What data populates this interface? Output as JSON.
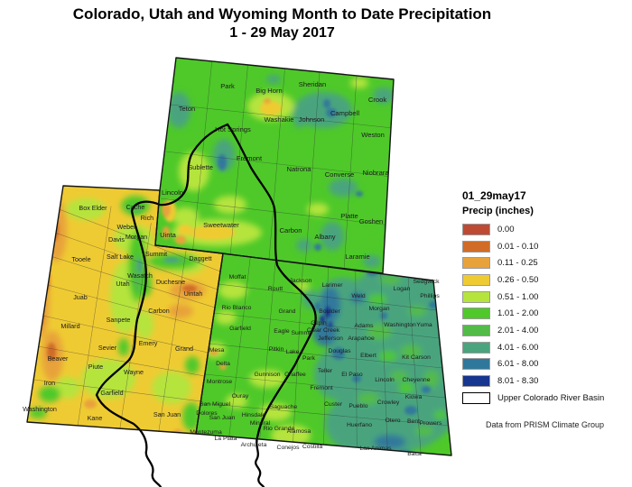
{
  "title": {
    "line1": "Colorado, Utah and Wyoming Month to Date Precipitation",
    "line2": "1 - 29 May 2017"
  },
  "legend": {
    "dataset_label": "01_29may17",
    "units_label": "Precip (inches)",
    "classes": [
      {
        "label": "0.00",
        "color": "#bf4a33"
      },
      {
        "label": "0.01 - 0.10",
        "color": "#d06c28"
      },
      {
        "label": "0.11 - 0.25",
        "color": "#e8a23b"
      },
      {
        "label": "0.26 - 0.50",
        "color": "#efcb33"
      },
      {
        "label": "0.51 - 1.00",
        "color": "#b5e43c"
      },
      {
        "label": "1.01 - 2.00",
        "color": "#4ec929"
      },
      {
        "label": "2.01 - 4.00",
        "color": "#53bb48"
      },
      {
        "label": "4.01 - 6.00",
        "color": "#4aa47e"
      },
      {
        "label": "6.01 - 8.00",
        "color": "#30789b"
      },
      {
        "label": "8.01 - 8.30",
        "color": "#16368f"
      }
    ],
    "basin_outline_label": "Upper Colorado River Basin"
  },
  "attribution": "Data from PRISM Climate Group",
  "map": {
    "states": [
      "Wyoming",
      "Utah",
      "Colorado"
    ],
    "overlay": "Upper Colorado River Basin boundary",
    "counties": {
      "wyoming": [
        [
          "Park",
          252,
          98
        ],
        [
          "Big Horn",
          298,
          103
        ],
        [
          "Sheridan",
          346,
          96
        ],
        [
          "Crook",
          418,
          113
        ],
        [
          "Teton",
          207,
          123
        ],
        [
          "Hot Springs",
          258,
          146
        ],
        [
          "Washakie",
          309,
          135
        ],
        [
          "Johnson",
          345,
          135
        ],
        [
          "Campbell",
          382,
          128
        ],
        [
          "Weston",
          413,
          152
        ],
        [
          "Sublette",
          222,
          188
        ],
        [
          "Fremont",
          276,
          178
        ],
        [
          "Natrona",
          331,
          190
        ],
        [
          "Converse",
          376,
          196
        ],
        [
          "Niobrara",
          416,
          194
        ],
        [
          "Lincoln",
          191,
          216
        ],
        [
          "Sweetwater",
          245,
          252
        ],
        [
          "Uinta",
          186,
          263
        ],
        [
          "Carbon",
          322,
          258
        ],
        [
          "Albany",
          360,
          265
        ],
        [
          "Platte",
          387,
          242
        ],
        [
          "Goshen",
          411,
          248
        ],
        [
          "Laramie",
          396,
          287
        ]
      ],
      "utah": [
        [
          "Box Elder",
          103,
          233
        ],
        [
          "Cache",
          150,
          232
        ],
        [
          "Rich",
          163,
          244
        ],
        [
          "Weber",
          140,
          254
        ],
        [
          "Davis",
          129,
          268
        ],
        [
          "Morgan",
          151,
          265
        ],
        [
          "Summit",
          173,
          284
        ],
        [
          "Tooele",
          90,
          290
        ],
        [
          "Salt Lake",
          133,
          287
        ],
        [
          "Daggett",
          222,
          289
        ],
        [
          "Wasatch",
          155,
          308
        ],
        [
          "Utah",
          136,
          317
        ],
        [
          "Duchesne",
          189,
          315
        ],
        [
          "Uintah",
          214,
          328
        ],
        [
          "Juab",
          89,
          332
        ],
        [
          "Sanpete",
          131,
          357
        ],
        [
          "Carbon",
          176,
          347
        ],
        [
          "Millard",
          78,
          364
        ],
        [
          "Emery",
          164,
          383
        ],
        [
          "Sevier",
          119,
          388
        ],
        [
          "Grand",
          204,
          389
        ],
        [
          "Beaver",
          64,
          400
        ],
        [
          "Piute",
          106,
          409
        ],
        [
          "Wayne",
          148,
          415
        ],
        [
          "Iron",
          55,
          427
        ],
        [
          "Garfield",
          124,
          438
        ],
        [
          "Washington",
          44,
          456
        ],
        [
          "Kane",
          105,
          466
        ],
        [
          "San Juan",
          185,
          462
        ]
      ],
      "colorado": [
        [
          "Moffat",
          263,
          309
        ],
        [
          "Routt",
          305,
          322
        ],
        [
          "Jackson",
          333,
          313
        ],
        [
          "Larimer",
          368,
          318
        ],
        [
          "Weld",
          397,
          330
        ],
        [
          "Logan",
          445,
          322
        ],
        [
          "Sedgwick",
          472,
          314
        ],
        [
          "Phillips",
          476,
          330
        ],
        [
          "Rio Blanco",
          262,
          343
        ],
        [
          "Grand",
          318,
          347
        ],
        [
          "Boulder",
          365,
          347
        ],
        [
          "Morgan",
          420,
          344
        ],
        [
          "Garfield",
          266,
          366
        ],
        [
          "Eagle",
          312,
          369
        ],
        [
          "Summit",
          334,
          371
        ],
        [
          "Gilpin",
          353,
          360
        ],
        [
          "Clear Creek",
          358,
          368
        ],
        [
          "Adams",
          403,
          363
        ],
        [
          "Washington",
          443,
          362
        ],
        [
          "Yuma",
          470,
          362
        ],
        [
          "Jefferson",
          366,
          377
        ],
        [
          "Arapahoe",
          400,
          377
        ],
        [
          "Mesa",
          240,
          390
        ],
        [
          "Pitkin",
          306,
          389
        ],
        [
          "Lake",
          324,
          392
        ],
        [
          "Park",
          342,
          399
        ],
        [
          "Douglas",
          376,
          391
        ],
        [
          "Elbert",
          408,
          396
        ],
        [
          "Kit Carson",
          461,
          398
        ],
        [
          "Delta",
          247,
          405
        ],
        [
          "Gunnison",
          296,
          417
        ],
        [
          "Chaffee",
          327,
          417
        ],
        [
          "Teller",
          360,
          413
        ],
        [
          "El Paso",
          390,
          417
        ],
        [
          "Lincoln",
          426,
          423
        ],
        [
          "Cheyenne",
          461,
          423
        ],
        [
          "Montrose",
          243,
          425
        ],
        [
          "Ouray",
          266,
          441
        ],
        [
          "San Miguel",
          238,
          450
        ],
        [
          "Saguache",
          314,
          453
        ],
        [
          "Custer",
          369,
          450
        ],
        [
          "Fremont",
          356,
          432
        ],
        [
          "Pueblo",
          397,
          452
        ],
        [
          "Crowley",
          430,
          448
        ],
        [
          "Kiowa",
          458,
          442
        ],
        [
          "Dolores",
          229,
          460
        ],
        [
          "San Juan",
          246,
          465
        ],
        [
          "Hinsdale",
          281,
          462
        ],
        [
          "Mineral",
          288,
          471
        ],
        [
          "Rio Grande",
          309,
          477
        ],
        [
          "Alamosa",
          331,
          480
        ],
        [
          "Huerfano",
          398,
          473
        ],
        [
          "Otero",
          435,
          468
        ],
        [
          "Bent",
          458,
          469
        ],
        [
          "Prowers",
          477,
          471
        ],
        [
          "Montezuma",
          228,
          481
        ],
        [
          "La Plata",
          250,
          488
        ],
        [
          "Archuleta",
          281,
          495
        ],
        [
          "Conejos",
          319,
          498
        ],
        [
          "Costilla",
          346,
          497
        ],
        [
          "Las Animas",
          416,
          499
        ],
        [
          "Baca",
          459,
          505
        ]
      ]
    }
  }
}
